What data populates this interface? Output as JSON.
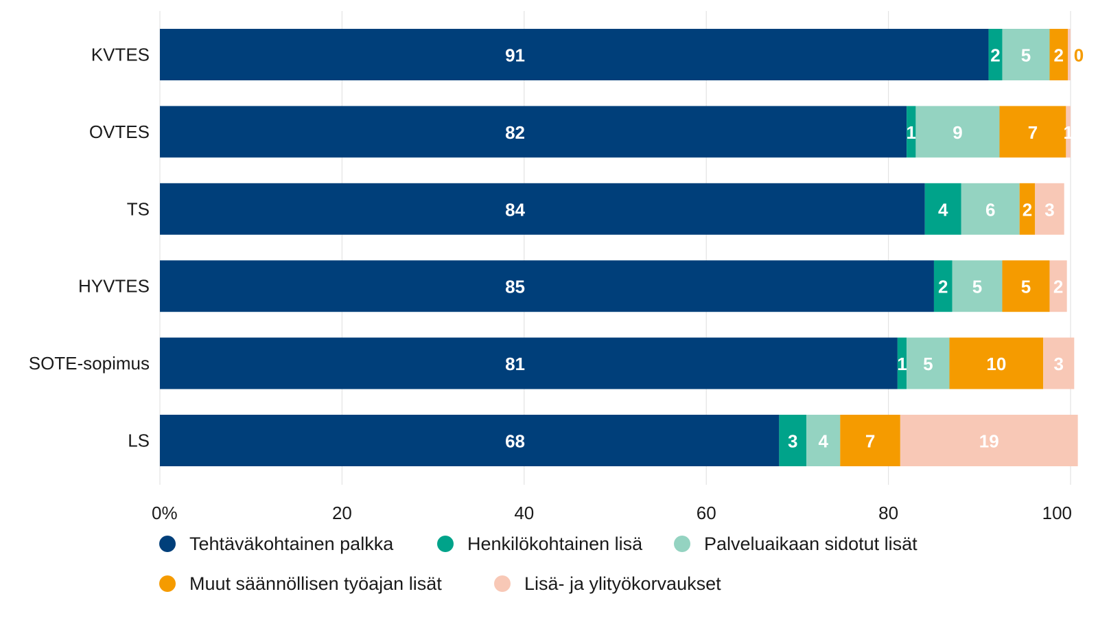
{
  "chart_data": {
    "type": "bar",
    "orientation": "horizontal",
    "stacked": true,
    "categories": [
      "KVTES",
      "OVTES",
      "TS",
      "HYVTES",
      "SOTE-sopimus",
      "LS"
    ],
    "series": [
      {
        "name": "Tehtäväkohtainen palkka",
        "color": "#003f7a",
        "label_color": "#ffffff",
        "values": [
          91,
          82,
          84,
          85,
          81,
          68
        ],
        "labels": [
          "91",
          "82",
          "84",
          "85",
          "81",
          "68"
        ]
      },
      {
        "name": "Henkilökohtainen lisä",
        "color": "#00a38a",
        "label_color": "#ffffff",
        "values": [
          1.5,
          1,
          4,
          2,
          1,
          3
        ],
        "labels": [
          "2",
          "1",
          "4",
          "2",
          "1",
          "3"
        ]
      },
      {
        "name": "Palveluaikaan sidotut lisät",
        "color": "#94d3c1",
        "label_color": "#ffffff",
        "values": [
          5.2,
          9.2,
          6.4,
          5.5,
          4.7,
          3.7
        ],
        "labels": [
          "5",
          "9",
          "6",
          "5",
          "5",
          "4"
        ]
      },
      {
        "name": "Muut säännöllisen työajan lisät",
        "color": "#f59b00",
        "label_color": "#ffffff",
        "values": [
          2,
          7.3,
          1.7,
          5.2,
          10.3,
          6.6
        ],
        "labels": [
          "2",
          "7",
          "2",
          "5",
          "10",
          "7"
        ]
      },
      {
        "name": "Lisä- ja ylityökorvaukset",
        "color": "#f8c8b6",
        "label_color": "#ffffff",
        "values": [
          0.3,
          0.5,
          3.2,
          1.9,
          3.4,
          19.5
        ],
        "labels": [
          "0",
          "1",
          "3",
          "2",
          "3",
          "19"
        ]
      }
    ],
    "small_label_color": "#f59b00",
    "xlim": [
      0,
      100
    ],
    "x_ticks": [
      "0%",
      "20",
      "40",
      "60",
      "80",
      "100"
    ],
    "x_tick_values": [
      0,
      20,
      40,
      60,
      80,
      100
    ],
    "grid": true,
    "legend_position": "bottom"
  }
}
